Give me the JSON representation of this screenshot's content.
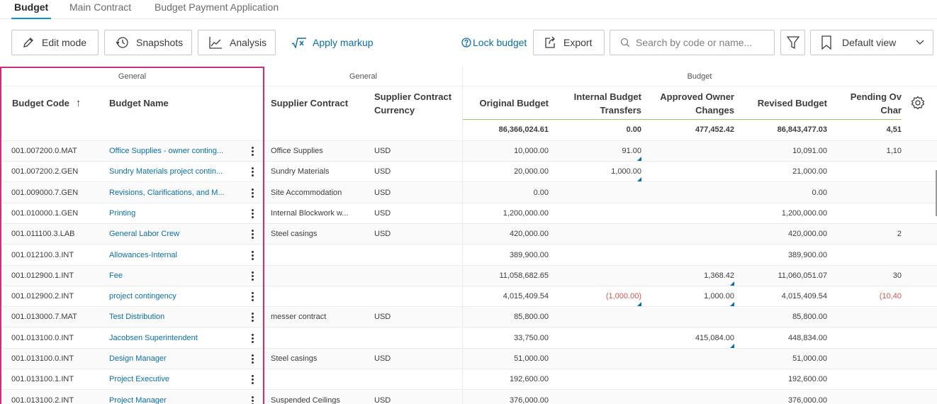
{
  "tabs": [
    {
      "label": "Budget",
      "active": true
    },
    {
      "label": "Main Contract",
      "active": false
    },
    {
      "label": "Budget Payment Application",
      "active": false
    }
  ],
  "toolbar": {
    "edit_mode": "Edit mode",
    "snapshots": "Snapshots",
    "analysis": "Analysis",
    "apply_markup": "Apply markup",
    "lock_budget": "Lock budget",
    "export": "Export",
    "search_placeholder": "Search by code or name...",
    "view_select": "Default view"
  },
  "colors": {
    "accent": "#0696d7",
    "link": "#0a6fa8",
    "negative": "#d9534f",
    "pinned_highlight": "#c7317a"
  },
  "grid": {
    "groups": {
      "pinned_general": "General",
      "general": "General",
      "budget": "Budget"
    },
    "columns": {
      "budget_code": "Budget Code",
      "budget_code_sort": "↑",
      "budget_name": "Budget Name",
      "supplier_contract": "Supplier Contract",
      "supplier_contract_currency_1": "Supplier Contract",
      "supplier_contract_currency_2": "Currency",
      "original_budget": "Original Budget",
      "internal_transfers_1": "Internal Budget",
      "internal_transfers_2": "Transfers",
      "approved_owner_1": "Approved Owner",
      "approved_owner_2": "Changes",
      "revised_budget": "Revised Budget",
      "pending_owner_1": "Pending Ov",
      "pending_owner_2": "Char"
    },
    "totals": {
      "original_budget": "86,366,024.61",
      "internal_transfers": "0.00",
      "approved_owner": "477,452.42",
      "revised_budget": "86,843,477.03",
      "pending_owner": "4,51"
    },
    "rows": [
      {
        "code": "001.007200.0.MAT",
        "name": "Office Supplies - owner conting...",
        "supplier": "Office Supplies",
        "currency": "USD",
        "original": "10,000.00",
        "transfers": "91.00",
        "approved": "",
        "revised": "10,091.00",
        "pending": "1,10"
      },
      {
        "code": "001.007200.2.GEN",
        "name": "Sundry Materials project contin...",
        "supplier": "Sundry Materials",
        "currency": "USD",
        "original": "20,000.00",
        "transfers": "1,000.00",
        "approved": "",
        "revised": "21,000.00",
        "pending": ""
      },
      {
        "code": "001.009000.7.GEN",
        "name": "Revisions, Clarifications, and M...",
        "supplier": "Site Accommodation",
        "currency": "USD",
        "original": "0.00",
        "transfers": "",
        "approved": "",
        "revised": "0.00",
        "pending": ""
      },
      {
        "code": "001.010000.1.GEN",
        "name": "Printing",
        "supplier": "Internal Blockwork w...",
        "currency": "USD",
        "original": "1,200,000.00",
        "transfers": "",
        "approved": "",
        "revised": "1,200,000.00",
        "pending": ""
      },
      {
        "code": "001.011100.3.LAB",
        "name": "General Labor Crew",
        "supplier": "Steel casings",
        "currency": "USD",
        "original": "420,000.00",
        "transfers": "",
        "approved": "",
        "revised": "420,000.00",
        "pending": "2"
      },
      {
        "code": "001.012100.3.INT",
        "name": "Allowances-Internal",
        "supplier": "",
        "currency": "",
        "original": "389,900.00",
        "transfers": "",
        "approved": "",
        "revised": "389,900.00",
        "pending": ""
      },
      {
        "code": "001.012900.1.INT",
        "name": "Fee",
        "supplier": "",
        "currency": "",
        "original": "11,058,682.65",
        "transfers": "",
        "approved": "1,368.42",
        "revised": "11,060,051.07",
        "pending": "30"
      },
      {
        "code": "001.012900.2.INT",
        "name": "project contingency",
        "supplier": "",
        "currency": "",
        "original": "4,015,409.54",
        "transfers": "(1,000.00)",
        "approved": "1,000.00",
        "revised": "4,015,409.54",
        "pending": "(10,40"
      },
      {
        "code": "001.013000.7.MAT",
        "name": "Test Distribution",
        "supplier": "messer contract",
        "currency": "USD",
        "original": "85,800.00",
        "transfers": "",
        "approved": "",
        "revised": "85,800.00",
        "pending": ""
      },
      {
        "code": "001.013100.0.INT",
        "name": "Jacobsen Superintendent",
        "supplier": "",
        "currency": "",
        "original": "33,750.00",
        "transfers": "",
        "approved": "415,084.00",
        "revised": "448,834.00",
        "pending": ""
      },
      {
        "code": "001.013100.0.INT",
        "name": "Design Manager",
        "supplier": "Steel casings",
        "currency": "USD",
        "original": "51,000.00",
        "transfers": "",
        "approved": "",
        "revised": "51,000.00",
        "pending": ""
      },
      {
        "code": "001.013100.1.INT",
        "name": "Project Executive",
        "supplier": "",
        "currency": "",
        "original": "192,600.00",
        "transfers": "",
        "approved": "",
        "revised": "192,600.00",
        "pending": ""
      },
      {
        "code": "001.013100.2.INT",
        "name": "Project Manager",
        "supplier": "Suspended Ceilings",
        "currency": "USD",
        "original": "376,000.00",
        "transfers": "",
        "approved": "",
        "revised": "376,000.00",
        "pending": ""
      }
    ]
  }
}
